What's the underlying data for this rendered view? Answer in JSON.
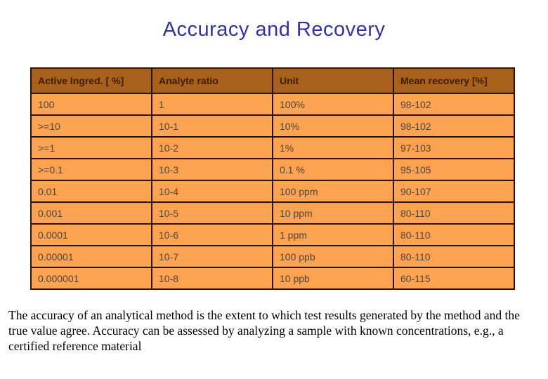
{
  "title": "Accuracy and Recovery",
  "table": {
    "headers": [
      "Active Ingred. [ %]",
      "Analyte ratio",
      "Unit",
      "Mean recovery [%]"
    ],
    "rows": [
      [
        "100",
        "1",
        "100%",
        "98-102"
      ],
      [
        ">=10",
        "10-1",
        "10%",
        "98-102"
      ],
      [
        ">=1",
        "10-2",
        "1%",
        "97-103"
      ],
      [
        ">=0.1",
        "10-3",
        "0.1 %",
        "95-105"
      ],
      [
        "0.01",
        "10-4",
        "100 ppm",
        "90-107"
      ],
      [
        "0.001",
        "10-5",
        "10 ppm",
        "80-110"
      ],
      [
        "0.0001",
        "10-6",
        "1 ppm",
        "80-110"
      ],
      [
        "0.00001",
        "10-7",
        "100 ppb",
        "80-110"
      ],
      [
        "0.000001",
        "10-8",
        "10 ppb",
        "60-115"
      ]
    ]
  },
  "footer_text": "The accuracy of an analytical method is the extent to which test results generated by the method and the true value agree. Accuracy can be assessed by analyzing a sample with known concentrations, e.g., a certified reference material",
  "colors": {
    "title": "#3333a0",
    "header_bg": "#a9601a",
    "header_text": "#3a1d00",
    "row_bg": "#fca352",
    "row_text": "#4f443c",
    "border": "#2b1500"
  }
}
